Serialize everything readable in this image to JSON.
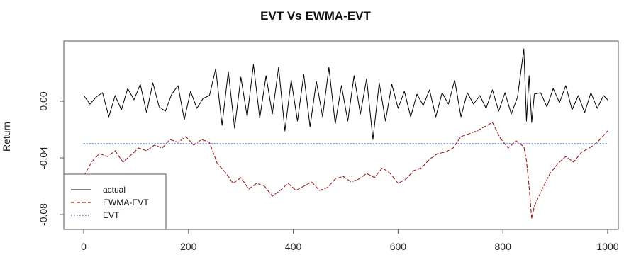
{
  "chart_data": {
    "type": "line",
    "title": "EVT Vs EWMA-EVT",
    "xlabel": "",
    "ylabel": "Return",
    "xlim": [
      0,
      1000
    ],
    "ylim": [
      -0.09,
      0.04
    ],
    "x_ticks": [
      0,
      200,
      400,
      600,
      800,
      1000
    ],
    "x_tick_labels": [
      "0",
      "200",
      "400",
      "600",
      "800",
      "1000"
    ],
    "y_ticks": [
      0.0,
      -0.04,
      -0.08
    ],
    "y_tick_labels": [
      "0.00",
      "-0.04",
      "-0.08"
    ],
    "grid": false,
    "legend_position": "bottom-left",
    "legend": [
      "actual",
      "EWMA-EVT",
      "EVT"
    ],
    "series": [
      {
        "name": "actual",
        "color": "#000000",
        "style": "solid",
        "x": [
          0,
          12,
          24,
          36,
          48,
          60,
          72,
          84,
          96,
          108,
          120,
          132,
          144,
          156,
          168,
          180,
          192,
          204,
          216,
          228,
          240,
          252,
          264,
          276,
          288,
          300,
          312,
          324,
          336,
          348,
          360,
          372,
          384,
          396,
          408,
          420,
          432,
          444,
          456,
          468,
          480,
          492,
          504,
          516,
          528,
          540,
          552,
          564,
          576,
          588,
          600,
          612,
          624,
          636,
          648,
          660,
          672,
          684,
          696,
          708,
          720,
          732,
          744,
          756,
          768,
          780,
          792,
          804,
          816,
          828,
          840,
          845,
          850,
          855,
          860,
          872,
          884,
          896,
          908,
          920,
          932,
          944,
          956,
          968,
          980,
          992,
          1000
        ],
        "y": [
          0.004,
          -0.002,
          0.003,
          0.006,
          -0.011,
          0.004,
          -0.006,
          0.009,
          0.001,
          0.012,
          -0.008,
          0.013,
          -0.004,
          -0.007,
          0.005,
          0.011,
          -0.013,
          0.007,
          -0.005,
          0.002,
          0.004,
          0.023,
          -0.017,
          0.021,
          -0.019,
          0.017,
          -0.011,
          0.026,
          -0.012,
          0.018,
          -0.009,
          0.024,
          -0.021,
          0.015,
          -0.014,
          0.019,
          -0.018,
          0.014,
          -0.011,
          0.024,
          -0.016,
          0.011,
          -0.014,
          0.018,
          -0.009,
          0.016,
          -0.027,
          0.013,
          -0.014,
          0.012,
          -0.005,
          0.007,
          -0.011,
          0.005,
          -0.003,
          0.008,
          -0.011,
          0.006,
          -0.002,
          0.015,
          -0.011,
          0.006,
          -0.002,
          0.004,
          -0.005,
          0.008,
          -0.007,
          0.006,
          -0.009,
          0.003,
          0.037,
          -0.014,
          0.018,
          -0.015,
          0.005,
          0.006,
          -0.004,
          0.009,
          -0.001,
          0.011,
          -0.006,
          0.004,
          -0.008,
          0.006,
          -0.005,
          0.004,
          0.001
        ]
      },
      {
        "name": "EWMA-EVT",
        "color": "#a11b1b",
        "style": "dashed",
        "x": [
          0,
          15,
          30,
          45,
          60,
          75,
          90,
          105,
          120,
          135,
          150,
          165,
          180,
          195,
          210,
          225,
          240,
          255,
          270,
          285,
          300,
          315,
          330,
          345,
          360,
          375,
          390,
          405,
          420,
          435,
          450,
          465,
          480,
          495,
          510,
          525,
          540,
          555,
          570,
          585,
          600,
          615,
          630,
          645,
          660,
          675,
          690,
          705,
          720,
          735,
          750,
          765,
          780,
          795,
          810,
          825,
          840,
          845,
          850,
          855,
          860,
          875,
          890,
          905,
          920,
          935,
          950,
          965,
          980,
          995,
          1000
        ],
        "y": [
          -0.053,
          -0.043,
          -0.037,
          -0.039,
          -0.035,
          -0.043,
          -0.038,
          -0.033,
          -0.035,
          -0.031,
          -0.033,
          -0.027,
          -0.029,
          -0.025,
          -0.031,
          -0.027,
          -0.029,
          -0.044,
          -0.05,
          -0.058,
          -0.054,
          -0.062,
          -0.058,
          -0.06,
          -0.067,
          -0.063,
          -0.058,
          -0.063,
          -0.06,
          -0.057,
          -0.063,
          -0.061,
          -0.055,
          -0.053,
          -0.057,
          -0.055,
          -0.051,
          -0.054,
          -0.047,
          -0.051,
          -0.058,
          -0.055,
          -0.049,
          -0.047,
          -0.041,
          -0.037,
          -0.036,
          -0.033,
          -0.025,
          -0.023,
          -0.021,
          -0.018,
          -0.015,
          -0.026,
          -0.033,
          -0.028,
          -0.032,
          -0.042,
          -0.06,
          -0.083,
          -0.074,
          -0.062,
          -0.051,
          -0.044,
          -0.039,
          -0.043,
          -0.036,
          -0.033,
          -0.029,
          -0.023,
          -0.021
        ]
      },
      {
        "name": "EVT",
        "color": "#1f4fb4",
        "style": "dotted",
        "x": [
          0,
          50,
          100,
          150,
          200,
          250,
          300,
          350,
          400,
          450,
          500,
          550,
          600,
          650,
          700,
          750,
          800,
          850,
          900,
          950,
          1000
        ],
        "y": [
          -0.03,
          -0.03,
          -0.03,
          -0.03,
          -0.03,
          -0.03,
          -0.03,
          -0.03,
          -0.03,
          -0.03,
          -0.03,
          -0.03,
          -0.03,
          -0.03,
          -0.03,
          -0.03,
          -0.03,
          -0.03,
          -0.03,
          -0.03,
          -0.03
        ]
      }
    ]
  }
}
